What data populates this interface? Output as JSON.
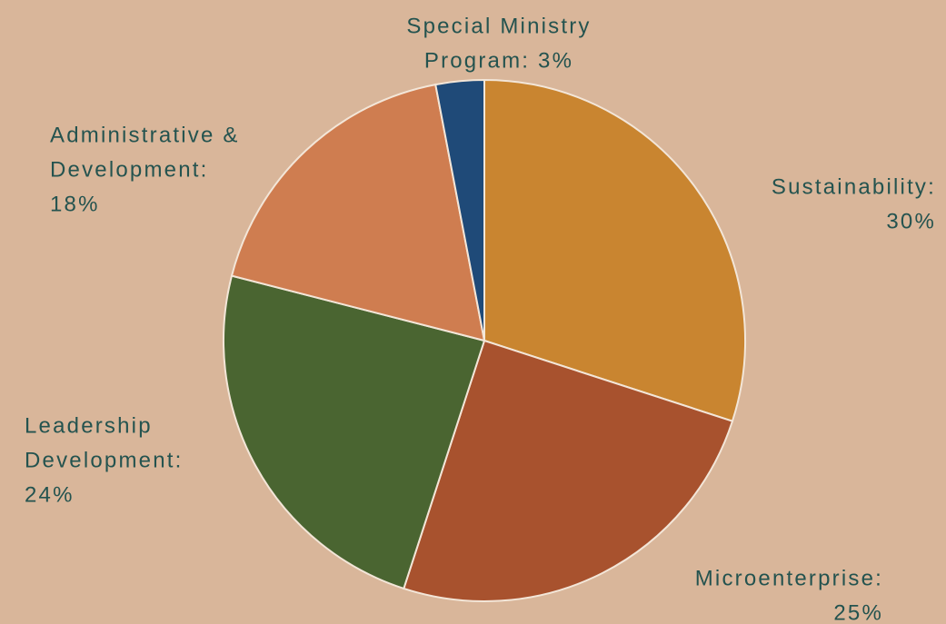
{
  "chart_data": {
    "type": "pie",
    "values": [
      30,
      25,
      24,
      18,
      3
    ],
    "value_labels": [
      [
        "Sustainability:",
        "30%"
      ],
      [
        "Microenterprise:",
        "25%"
      ],
      [
        "Leadership",
        "Development:",
        "24%"
      ],
      [
        "Administrative &",
        "Development:",
        "18%"
      ],
      [
        "Special Ministry",
        "Program: 3%"
      ]
    ],
    "colors": [
      "#c98530",
      "#a8522e",
      "#4a6531",
      "#cf7d50",
      "#1f4a78"
    ]
  }
}
